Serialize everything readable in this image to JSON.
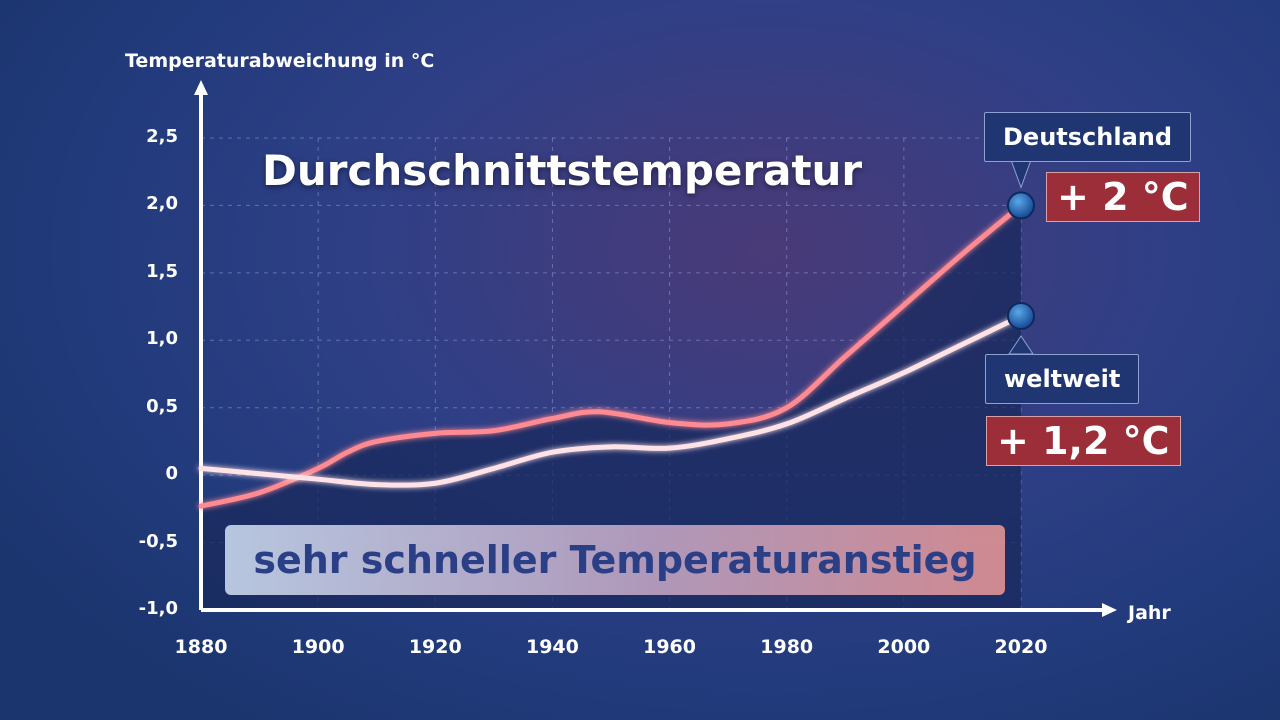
{
  "chart_data": {
    "type": "line",
    "title": "Durchschnittstemperatur",
    "ylabel": "Temperaturabweichung in °C",
    "xlabel": "Jahr",
    "xlim": [
      1880,
      2020
    ],
    "ylim": [
      -1.0,
      2.5
    ],
    "x_ticks": [
      "1880",
      "1900",
      "1920",
      "1940",
      "1960",
      "1980",
      "2000",
      "2020"
    ],
    "y_ticks": [
      "2,5",
      "2,0",
      "1,5",
      "1,0",
      "0,5",
      "0",
      "-0,5",
      "-1,0"
    ],
    "grid": true,
    "series": [
      {
        "name": "Deutschland",
        "color": "#ff8a92",
        "x": [
          1880,
          1890,
          1900,
          1905,
          1910,
          1920,
          1930,
          1940,
          1948,
          1960,
          1970,
          1980,
          1990,
          2000,
          2010,
          2020
        ],
        "y": [
          -0.23,
          -0.13,
          0.05,
          0.17,
          0.25,
          0.31,
          0.33,
          0.42,
          0.47,
          0.39,
          0.38,
          0.5,
          0.88,
          1.26,
          1.64,
          2.0
        ]
      },
      {
        "name": "weltweit",
        "color": "#ffe2e6",
        "x": [
          1880,
          1890,
          1900,
          1910,
          1920,
          1930,
          1940,
          1950,
          1960,
          1970,
          1980,
          1990,
          2000,
          2010,
          2020
        ],
        "y": [
          0.05,
          0.01,
          -0.03,
          -0.07,
          -0.06,
          0.05,
          0.17,
          0.21,
          0.2,
          0.27,
          0.38,
          0.57,
          0.76,
          0.97,
          1.18
        ]
      }
    ],
    "annotations": {
      "germany_label": "Deutschland",
      "germany_value": "+ 2 °C",
      "world_label": "weltweit",
      "world_value": "+ 1,2 °C",
      "banner": "sehr schneller Temperaturanstieg"
    }
  }
}
